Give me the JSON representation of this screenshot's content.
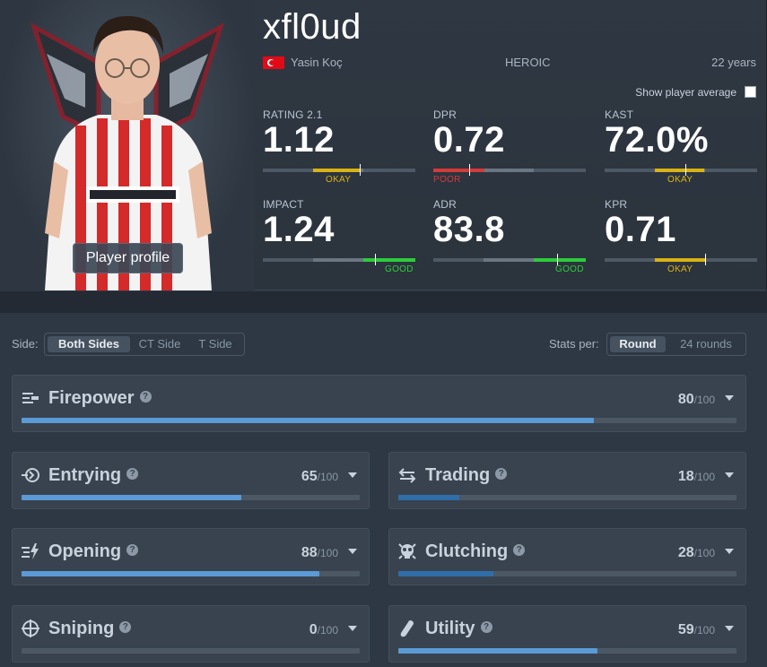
{
  "player": {
    "nickname": "xfl0ud",
    "real_name": "Yasin Koç",
    "country": "Turkey",
    "team": "HEROIC",
    "age": "22 years",
    "profile_button": "Player profile",
    "show_average_label": "Show player average",
    "show_average_checked": false
  },
  "colors": {
    "okay": "#d9b315",
    "poor": "#d33a3a",
    "good": "#2dcc3a",
    "bar_strong": "#5b9ad6",
    "bar_weak": "#2f6ea8"
  },
  "stats": [
    {
      "label": "RATING 2.1",
      "value": "1.12",
      "grade": "OKAY",
      "grade_color": "#d9b315"
    },
    {
      "label": "DPR",
      "value": "0.72",
      "grade": "POOR",
      "grade_color": "#d33a3a"
    },
    {
      "label": "KAST",
      "value": "72.0%",
      "grade": "OKAY",
      "grade_color": "#d9b315"
    },
    {
      "label": "IMPACT",
      "value": "1.24",
      "grade": "GOOD",
      "grade_color": "#2dcc3a"
    },
    {
      "label": "ADR",
      "value": "83.8",
      "grade": "GOOD",
      "grade_color": "#2dcc3a"
    },
    {
      "label": "KPR",
      "value": "0.71",
      "grade": "OKAY",
      "grade_color": "#d9b315"
    }
  ],
  "filters": {
    "side_label": "Side:",
    "side_options": [
      "Both Sides",
      "CT Side",
      "T Side"
    ],
    "side_selected": "Both Sides",
    "stats_per_label": "Stats per:",
    "stats_per_options": [
      "Round",
      "24 rounds"
    ],
    "stats_per_selected": "Round"
  },
  "categories": [
    {
      "name": "Firepower",
      "icon": "firepower-icon",
      "score": "80",
      "max": "/100",
      "fill": 0.8
    },
    {
      "name": "Entrying",
      "icon": "entrying-icon",
      "score": "65",
      "max": "/100",
      "fill": 0.65
    },
    {
      "name": "Trading",
      "icon": "trading-icon",
      "score": "18",
      "max": "/100",
      "fill": 0.18
    },
    {
      "name": "Opening",
      "icon": "opening-icon",
      "score": "88",
      "max": "/100",
      "fill": 0.88
    },
    {
      "name": "Clutching",
      "icon": "clutching-icon",
      "score": "28",
      "max": "/100",
      "fill": 0.28
    },
    {
      "name": "Sniping",
      "icon": "sniping-icon",
      "score": "0",
      "max": "/100",
      "fill": 0.0
    },
    {
      "name": "Utility",
      "icon": "utility-icon",
      "score": "59",
      "max": "/100",
      "fill": 0.59
    }
  ],
  "help_glyph": "?"
}
